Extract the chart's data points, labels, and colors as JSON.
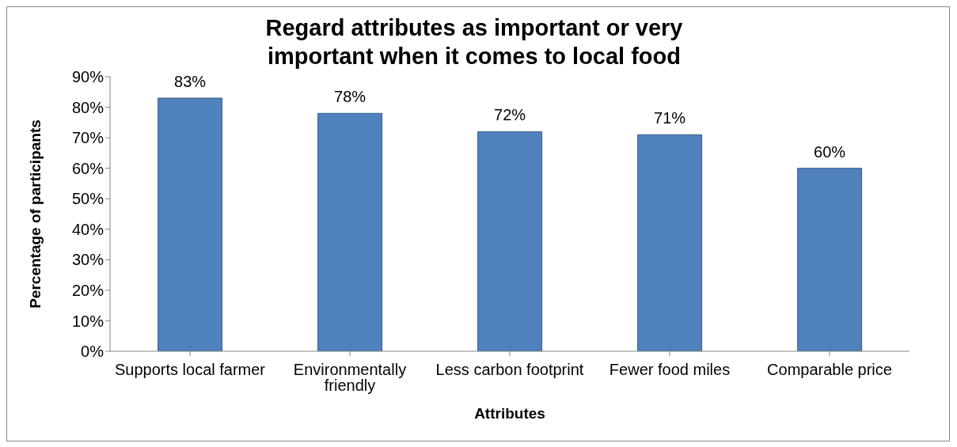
{
  "chart_data": {
    "type": "bar",
    "title": "Regard attributes as important or very important when it comes to local food",
    "xlabel": "Attributes",
    "ylabel": "Percentage of participants",
    "categories": [
      "Supports local farmer",
      "Environmentally friendly",
      "Less carbon footprint",
      "Fewer food miles",
      "Comparable price"
    ],
    "values": [
      83,
      78,
      72,
      71,
      60
    ],
    "value_labels": [
      "83%",
      "78%",
      "72%",
      "71%",
      "60%"
    ],
    "color": "#4f81bd",
    "ylim": [
      0,
      90
    ],
    "yticks": [
      {
        "value": 0,
        "label": "0%"
      },
      {
        "value": 10,
        "label": "10%"
      },
      {
        "value": 20,
        "label": "20%"
      },
      {
        "value": 30,
        "label": "30%"
      },
      {
        "value": 40,
        "label": "40%"
      },
      {
        "value": 50,
        "label": "50%"
      },
      {
        "value": 60,
        "label": "60%"
      },
      {
        "value": 70,
        "label": "70%"
      },
      {
        "value": 80,
        "label": "80%"
      },
      {
        "value": 90,
        "label": "90%"
      }
    ],
    "grid": false,
    "legend": false
  }
}
